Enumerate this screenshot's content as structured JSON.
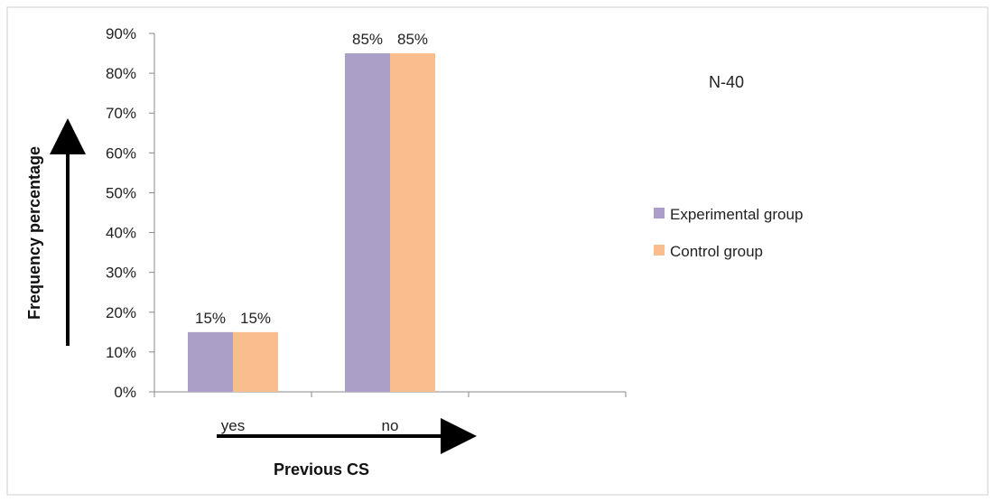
{
  "chart_data": {
    "type": "bar",
    "categories": [
      "yes",
      "no"
    ],
    "series": [
      {
        "name": "Experimental group",
        "values": [
          15,
          85
        ],
        "color": "#ab9fc8"
      },
      {
        "name": "Control group",
        "values": [
          15,
          85
        ],
        "color": "#f9bd8e"
      }
    ],
    "data_labels": [
      [
        "15%",
        "85%"
      ],
      [
        "15%",
        "85%"
      ]
    ],
    "yticks": [
      "0%",
      "10%",
      "20%",
      "30%",
      "40%",
      "50%",
      "60%",
      "70%",
      "80%",
      "90%"
    ],
    "ylim": [
      0,
      90
    ],
    "xlabel": "Previous CS",
    "ylabel": "Frequency percentage",
    "annotation": "N-40",
    "legend_position": "right",
    "grid": false
  }
}
